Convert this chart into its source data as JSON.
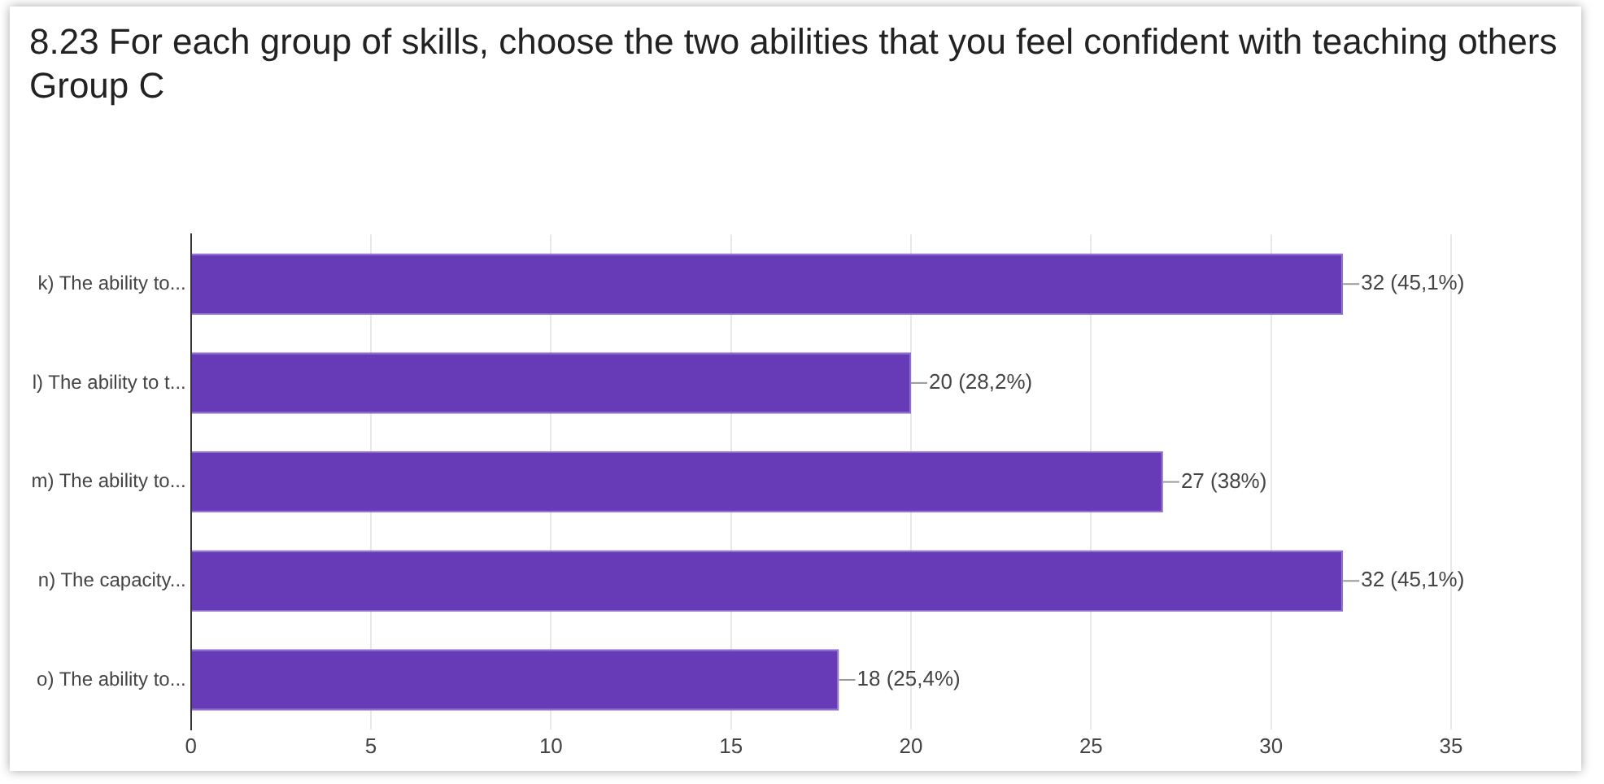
{
  "chart_data": {
    "type": "bar",
    "orientation": "horizontal",
    "title": "8.23 For each group of skills, choose the two abilities that you feel confident with teaching others Group C",
    "categories": [
      "k) The ability to...",
      "l) The ability to t...",
      "m) The ability to...",
      "n) The capacity...",
      "o) The ability to..."
    ],
    "values": [
      32,
      20,
      27,
      32,
      18
    ],
    "value_labels": [
      "32 (45,1%)",
      "20 (28,2%)",
      "27 (38%)",
      "32 (45,1%)",
      "18 (25,4%)"
    ],
    "color": "#673ab7",
    "xlim": [
      0,
      35
    ],
    "xticks": [
      0,
      5,
      10,
      15,
      20,
      25,
      30,
      35
    ],
    "grid": "x",
    "legend": false
  }
}
